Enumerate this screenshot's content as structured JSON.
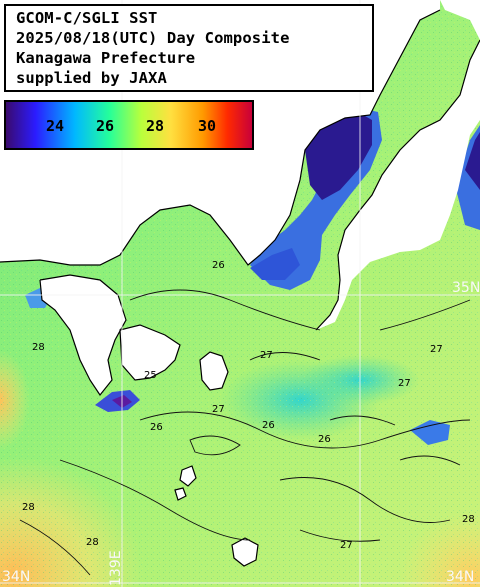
{
  "title": {
    "line1": "GCOM-C/SGLI SST",
    "line2": "2025/08/18(UTC) Day Composite",
    "line3": "Kanagawa Prefecture",
    "line4": "supplied by JAXA"
  },
  "colorbar": {
    "ticks": [
      "24",
      "26",
      "28",
      "30"
    ],
    "colors": [
      "#3a0a6e",
      "#2b1cff",
      "#00b8ff",
      "#25ff7a",
      "#e8ff3c",
      "#ffb000",
      "#ff3000",
      "#d00030"
    ]
  },
  "grid_labels": {
    "lat_bottom_left": "34N",
    "lat_bottom_right": "34N",
    "lat_mid_right": "35N",
    "lon_bottom": "139E"
  },
  "contour_labels": [
    "26",
    "27",
    "28",
    "26",
    "28",
    "27",
    "25",
    "27",
    "26",
    "28",
    "27",
    "26",
    "28",
    "27"
  ],
  "colors": {
    "land": "#ffffff",
    "coast": "#000000",
    "grid": "#f4f4f4"
  }
}
